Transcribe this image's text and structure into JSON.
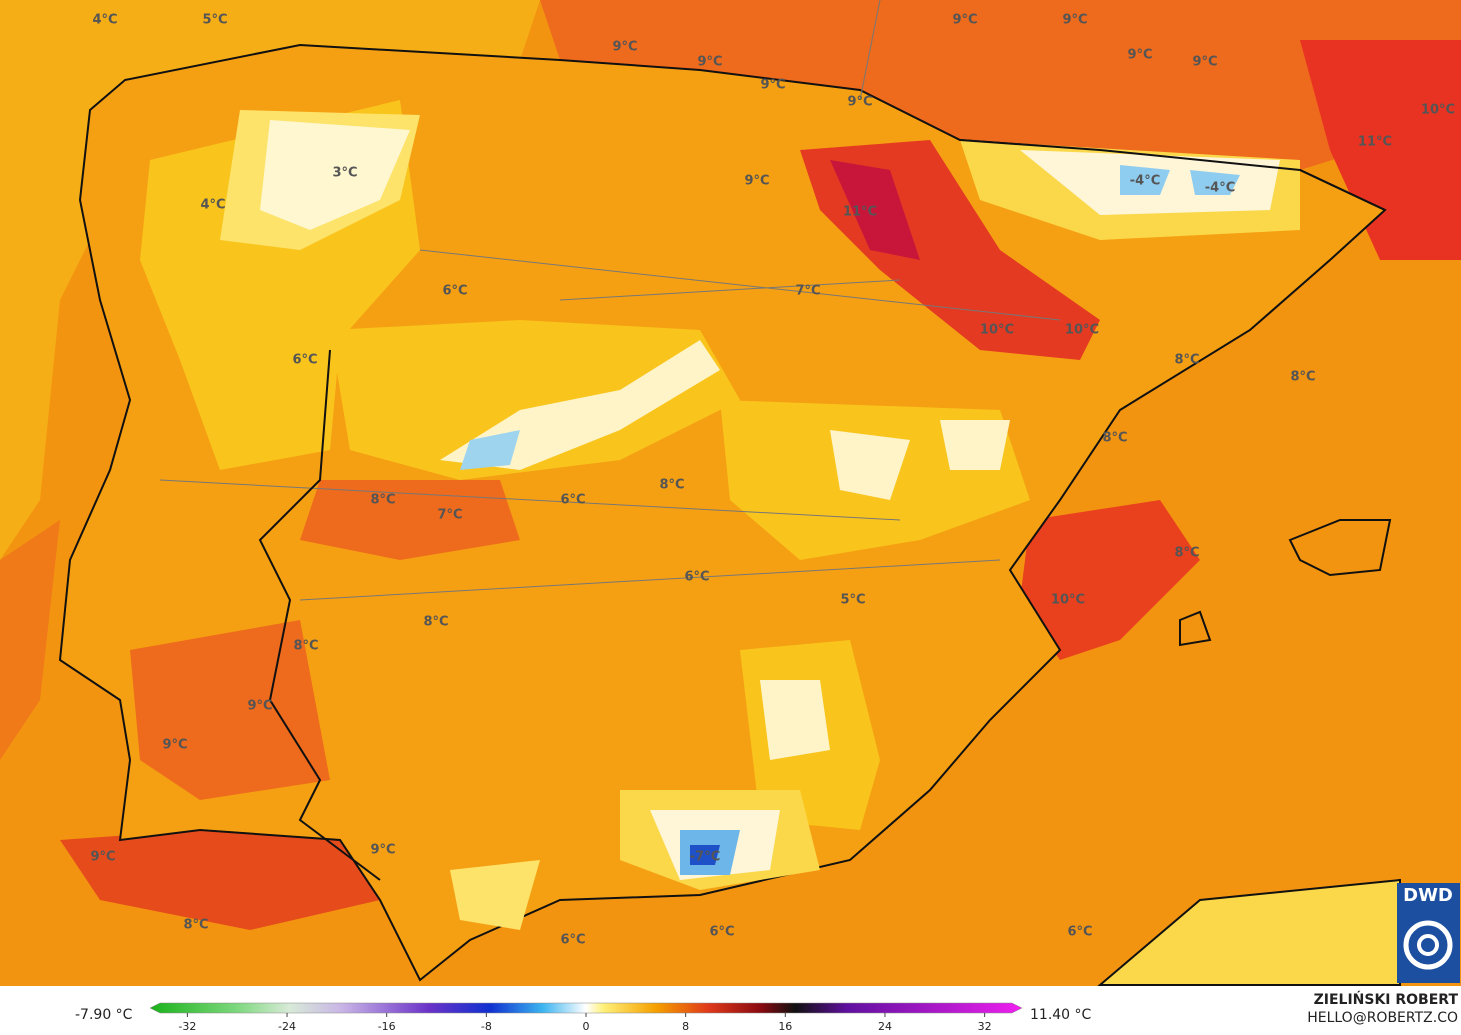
{
  "map": {
    "labels": [
      "4°C",
      "5°C",
      "9°C",
      "9°C",
      "9°C",
      "9°C",
      "9°C",
      "9°C",
      "9°C",
      "9°C",
      "10°C",
      "11°C",
      "3°C",
      "4°C",
      "9°C",
      "11°C",
      "-4°C",
      "-4°C",
      "6°C",
      "7°C",
      "10°C",
      "10°C",
      "6°C",
      "8°C",
      "8°C",
      "8°C",
      "8°C",
      "7°C",
      "6°C",
      "8°C",
      "8°C",
      "6°C",
      "5°C",
      "10°C",
      "8°C",
      "8°C",
      "9°C",
      "9°C",
      "-7°C",
      "9°C",
      "9°C",
      "8°C",
      "6°C",
      "6°C",
      "6°C"
    ]
  },
  "legend": {
    "min_label": "-7.90 °C",
    "max_label": "11.40 °C",
    "range": [
      -35,
      35
    ],
    "ticks": [
      -32,
      -24,
      -16,
      -8,
      0,
      8,
      16,
      24,
      32
    ]
  },
  "credit": {
    "author": "ZIELIŃSKI ROBERT",
    "contact": "HELLO@ROBERTZ.CO",
    "logo": "DWD"
  }
}
